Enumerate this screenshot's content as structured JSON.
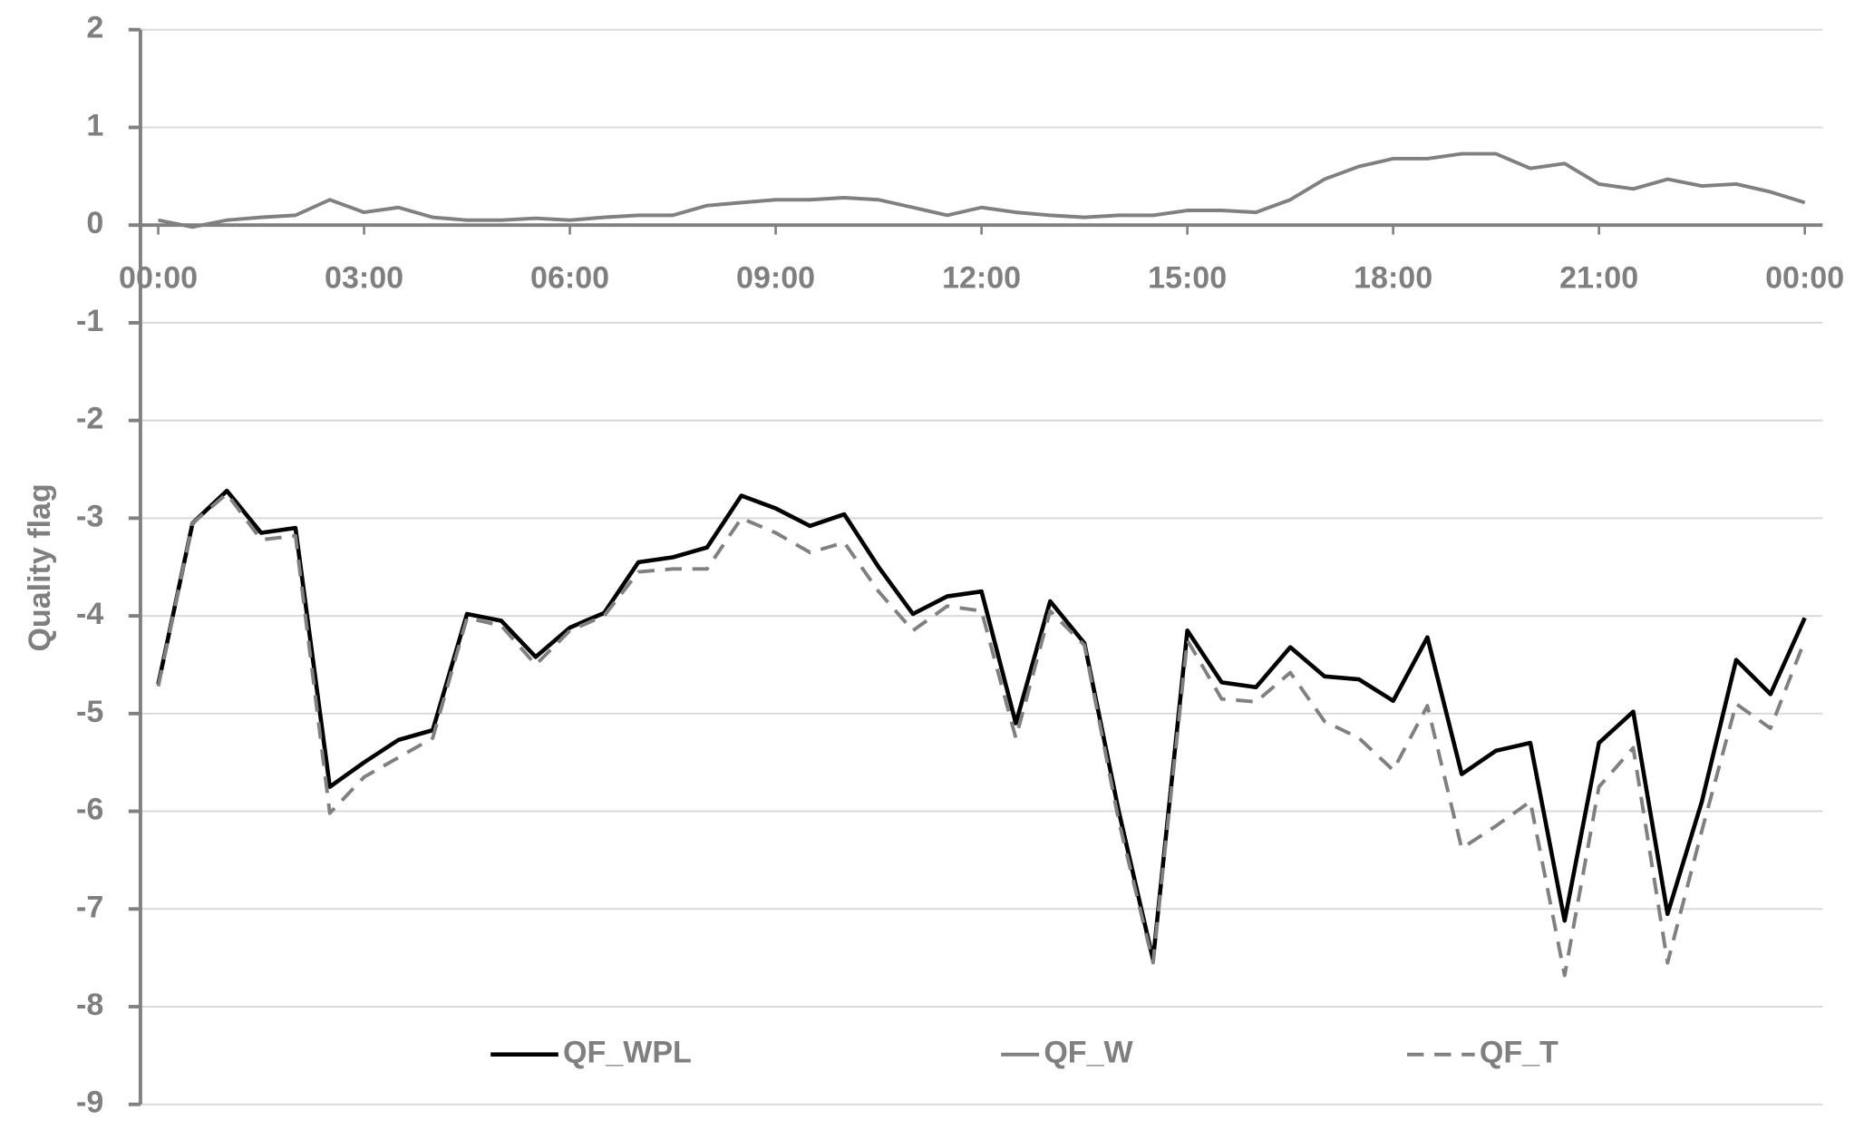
{
  "chart_data": {
    "type": "line",
    "y_label": "Quality flag",
    "categories": [
      "00:00",
      null,
      null,
      null,
      null,
      null,
      "03:00",
      null,
      null,
      null,
      null,
      null,
      "06:00",
      null,
      null,
      null,
      null,
      null,
      "09:00",
      null,
      null,
      null,
      null,
      null,
      "12:00",
      null,
      null,
      null,
      null,
      null,
      "15:00",
      null,
      null,
      null,
      null,
      null,
      "18:00",
      null,
      null,
      null,
      null,
      null,
      "21:00",
      null,
      null,
      null,
      null,
      null,
      "00:00"
    ],
    "series": [
      {
        "name": "QF_WPL",
        "color": "#000000",
        "dashed": false,
        "values": [
          -4.7,
          -3.05,
          -2.72,
          -3.15,
          -3.1,
          -5.75,
          -5.5,
          -5.27,
          -5.17,
          -3.98,
          -4.05,
          -4.42,
          -4.12,
          -3.97,
          -3.45,
          -3.4,
          -3.3,
          -2.77,
          -2.9,
          -3.08,
          -2.96,
          -3.5,
          -3.98,
          -3.8,
          -3.75,
          -5.1,
          -3.85,
          -4.28,
          -6.0,
          -7.52,
          -4.15,
          -4.68,
          -4.73,
          -4.32,
          -4.62,
          -4.65,
          -4.87,
          -4.22,
          -5.62,
          -5.38,
          -5.3,
          -7.12,
          -5.3,
          -4.98,
          -7.05,
          -5.9,
          -4.45,
          -4.8,
          -4.02
        ]
      },
      {
        "name": "QF_W",
        "color": "#808080",
        "dashed": false,
        "values": [
          0.05,
          -0.02,
          0.05,
          0.08,
          0.1,
          0.26,
          0.13,
          0.18,
          0.08,
          0.05,
          0.05,
          0.07,
          0.05,
          0.08,
          0.1,
          0.1,
          0.2,
          0.23,
          0.26,
          0.26,
          0.28,
          0.26,
          0.18,
          0.1,
          0.18,
          0.13,
          0.1,
          0.08,
          0.1,
          0.1,
          0.15,
          0.15,
          0.13,
          0.26,
          0.47,
          0.6,
          0.68,
          0.68,
          0.73,
          0.73,
          0.58,
          0.63,
          0.42,
          0.37,
          0.47,
          0.4,
          0.42,
          0.34,
          0.23
        ]
      },
      {
        "name": "QF_T",
        "color": "#808080",
        "dashed": true,
        "values": [
          -4.72,
          -3.05,
          -2.75,
          -3.22,
          -3.18,
          -6.02,
          -5.65,
          -5.45,
          -5.25,
          -4.02,
          -4.1,
          -4.5,
          -4.15,
          -4.0,
          -3.55,
          -3.52,
          -3.52,
          -3.0,
          -3.15,
          -3.35,
          -3.25,
          -3.75,
          -4.15,
          -3.9,
          -3.95,
          -5.25,
          -3.95,
          -4.3,
          -6.1,
          -7.55,
          -4.25,
          -4.85,
          -4.88,
          -4.58,
          -5.08,
          -5.25,
          -5.58,
          -4.92,
          -6.38,
          -6.15,
          -5.9,
          -7.68,
          -5.75,
          -5.35,
          -7.55,
          -6.2,
          -4.9,
          -5.15,
          -4.25
        ]
      }
    ],
    "ylim": [
      -9,
      2
    ],
    "yticks": [
      -9,
      -8,
      -7,
      -6,
      -5,
      -4,
      -3,
      -2,
      -1,
      0,
      1,
      2
    ],
    "grid": true,
    "legend": "bottom"
  }
}
